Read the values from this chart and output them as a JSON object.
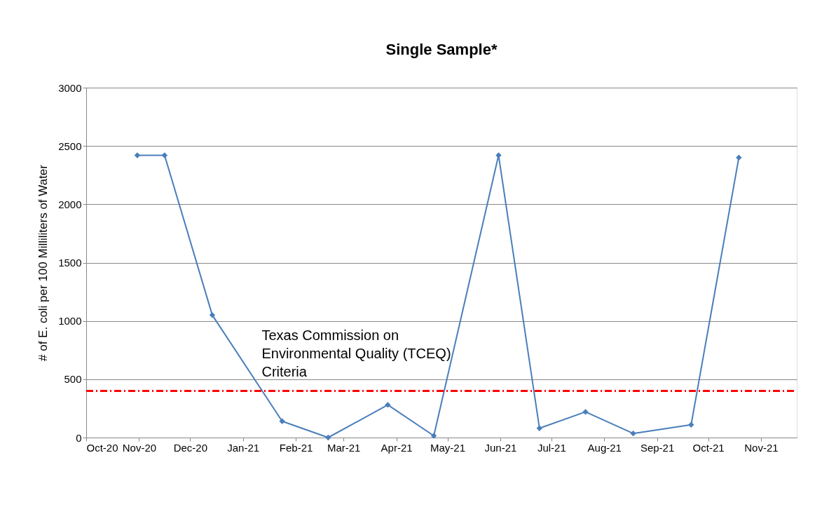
{
  "chart_data": {
    "type": "line",
    "title": "Single Sample*",
    "ylabel": "# of E. coli per 100 Milliliters of Water",
    "x": [
      "2020-10-31",
      "2020-11-16",
      "2020-12-14",
      "2021-01-24",
      "2021-02-20",
      "2021-03-27",
      "2021-04-23",
      "2021-05-31",
      "2021-06-24",
      "2021-07-21",
      "2021-08-18",
      "2021-09-21",
      "2021-10-19"
    ],
    "series": [
      {
        "color": "#4a7ebb",
        "values": [
          2420,
          2420,
          1050,
          140,
          0,
          280,
          15,
          2420,
          80,
          220,
          35,
          110,
          2400
        ]
      }
    ],
    "xlim": [
      "2020-10-01",
      "2021-11-22"
    ],
    "xticks": [
      {
        "value": "2020-10-01",
        "label": "Oct-20"
      },
      {
        "value": "2020-11-01",
        "label": "Nov-20"
      },
      {
        "value": "2020-12-01",
        "label": "Dec-20"
      },
      {
        "value": "2021-01-01",
        "label": "Jan-21"
      },
      {
        "value": "2021-02-01",
        "label": "Feb-21"
      },
      {
        "value": "2021-03-01",
        "label": "Mar-21"
      },
      {
        "value": "2021-04-01",
        "label": "Apr-21"
      },
      {
        "value": "2021-05-01",
        "label": "May-21"
      },
      {
        "value": "2021-06-01",
        "label": "Jun-21"
      },
      {
        "value": "2021-07-01",
        "label": "Jul-21"
      },
      {
        "value": "2021-08-01",
        "label": "Aug-21"
      },
      {
        "value": "2021-09-01",
        "label": "Sep-21"
      },
      {
        "value": "2021-10-01",
        "label": "Oct-21"
      },
      {
        "value": "2021-11-01",
        "label": "Nov-21"
      }
    ],
    "ylim": [
      0,
      3000
    ],
    "yticks": [
      0,
      500,
      1000,
      1500,
      2000,
      2500,
      3000
    ],
    "ref_lines": [
      {
        "axis": "y",
        "value": 400,
        "label": "Texas Commission on Environmental Quality (TCEQ) Criteria",
        "color": "#ff0000",
        "line_style": "dashdot"
      }
    ],
    "grid": "y",
    "marker": "diamond",
    "line_style": "solid"
  }
}
